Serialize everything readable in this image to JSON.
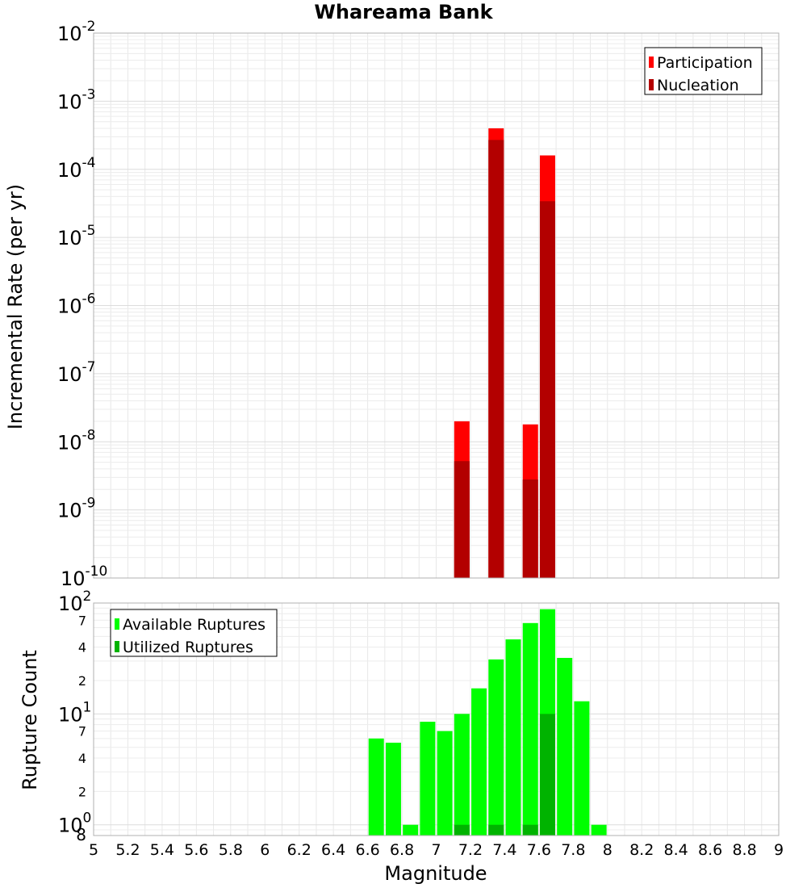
{
  "chart_data": [
    {
      "type": "bar",
      "title": "Whareama Bank",
      "xlabel": "",
      "ylabel": "Incremental Rate (per yr)",
      "yscale": "log",
      "xlim": [
        5,
        9
      ],
      "ylim": [
        1e-10,
        0.01
      ],
      "grid": true,
      "legend_position": "top-right",
      "y_tick_base": "10",
      "y_tick_exponents": [
        "-10",
        "-9",
        "-8",
        "-7",
        "-6",
        "-5",
        "-4",
        "-3",
        "-2"
      ],
      "series": [
        {
          "name": "Participation",
          "color": "#ff0000",
          "x": [
            7.15,
            7.35,
            7.55,
            7.65
          ],
          "values": [
            2e-08,
            0.0004,
            1.8e-08,
            0.00016
          ]
        },
        {
          "name": "Nucleation",
          "color": "#b30000",
          "x": [
            7.15,
            7.35,
            7.55,
            7.65
          ],
          "values": [
            5.2e-09,
            0.00027,
            2.8e-09,
            3.4e-05
          ]
        }
      ]
    },
    {
      "type": "bar",
      "title": "",
      "xlabel": "Magnitude",
      "ylabel": "Rupture Count",
      "yscale": "log",
      "xlim": [
        5,
        9
      ],
      "ylim": [
        0.8,
        100
      ],
      "grid": true,
      "legend_position": "top-left",
      "x_ticks": [
        "5",
        "5.2",
        "5.4",
        "5.6",
        "5.8",
        "6",
        "6.2",
        "6.4",
        "6.6",
        "6.8",
        "7",
        "7.2",
        "7.4",
        "7.6",
        "7.8",
        "8",
        "8.2",
        "8.4",
        "8.6",
        "8.8",
        "9"
      ],
      "y_major_ticks": [
        {
          "base": "10",
          "exp": "0",
          "value": 1
        },
        {
          "base": "10",
          "exp": "1",
          "value": 10
        },
        {
          "base": "10",
          "exp": "2",
          "value": 100
        }
      ],
      "y_minor_ticks": [
        {
          "label": "8",
          "value": 0.8
        },
        {
          "label": "2",
          "value": 2
        },
        {
          "label": "4",
          "value": 4
        },
        {
          "label": "7",
          "value": 7
        },
        {
          "label": "2",
          "value": 20
        },
        {
          "label": "4",
          "value": 40
        },
        {
          "label": "7",
          "value": 70
        }
      ],
      "series": [
        {
          "name": "Available Ruptures",
          "color": "#00ff00",
          "x": [
            6.65,
            6.75,
            6.85,
            6.95,
            7.05,
            7.15,
            7.25,
            7.35,
            7.45,
            7.55,
            7.65,
            7.75,
            7.85,
            7.95
          ],
          "values": [
            6,
            5.5,
            1,
            8.5,
            7,
            10,
            17,
            31,
            47,
            66,
            88,
            32,
            13,
            1
          ]
        },
        {
          "name": "Utilized Ruptures",
          "color": "#00b300",
          "x": [
            7.15,
            7.35,
            7.55,
            7.65
          ],
          "values": [
            1,
            1,
            1,
            10
          ]
        }
      ]
    }
  ]
}
